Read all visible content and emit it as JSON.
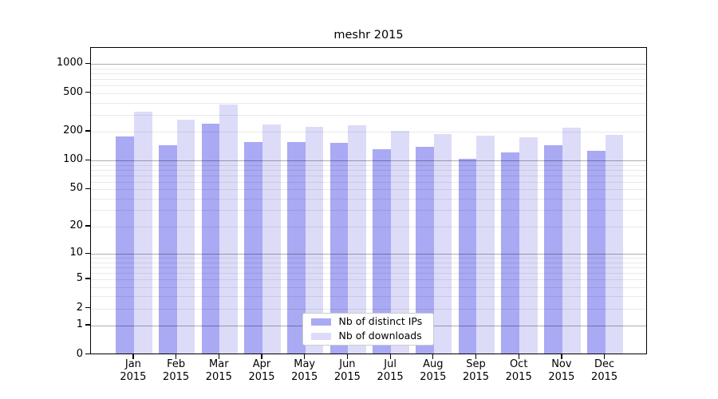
{
  "chart_data": {
    "type": "bar",
    "title": "meshr 2015",
    "categories": [
      {
        "month": "Jan",
        "year": "2015"
      },
      {
        "month": "Feb",
        "year": "2015"
      },
      {
        "month": "Mar",
        "year": "2015"
      },
      {
        "month": "Apr",
        "year": "2015"
      },
      {
        "month": "May",
        "year": "2015"
      },
      {
        "month": "Jun",
        "year": "2015"
      },
      {
        "month": "Jul",
        "year": "2015"
      },
      {
        "month": "Aug",
        "year": "2015"
      },
      {
        "month": "Sep",
        "year": "2015"
      },
      {
        "month": "Oct",
        "year": "2015"
      },
      {
        "month": "Nov",
        "year": "2015"
      },
      {
        "month": "Dec",
        "year": "2015"
      }
    ],
    "series": [
      {
        "name": "Nb of distinct IPs",
        "color": "#a9a9f4",
        "values": [
          170,
          139,
          231,
          151,
          150,
          147,
          127,
          133,
          101,
          116,
          139,
          122
        ]
      },
      {
        "name": "Nb of downloads",
        "color": "#dcdcf8",
        "values": [
          308,
          255,
          366,
          229,
          215,
          226,
          196,
          180,
          176,
          167,
          213,
          178
        ]
      }
    ],
    "y_axis": {
      "scale": "log10(value+1)",
      "tick_labels": [
        "0",
        "1",
        "2",
        "5",
        "10",
        "20",
        "50",
        "100",
        "200",
        "500",
        "1000"
      ],
      "major_gridlines": [
        1,
        10,
        100,
        1000
      ],
      "minor_gridline_decades": [
        1,
        10,
        100
      ],
      "ylim": [
        0,
        1400
      ],
      "grid": true
    },
    "legend": {
      "position": "inside-bottom-center",
      "entries": [
        "Nb of distinct IPs",
        "Nb of downloads"
      ]
    }
  }
}
